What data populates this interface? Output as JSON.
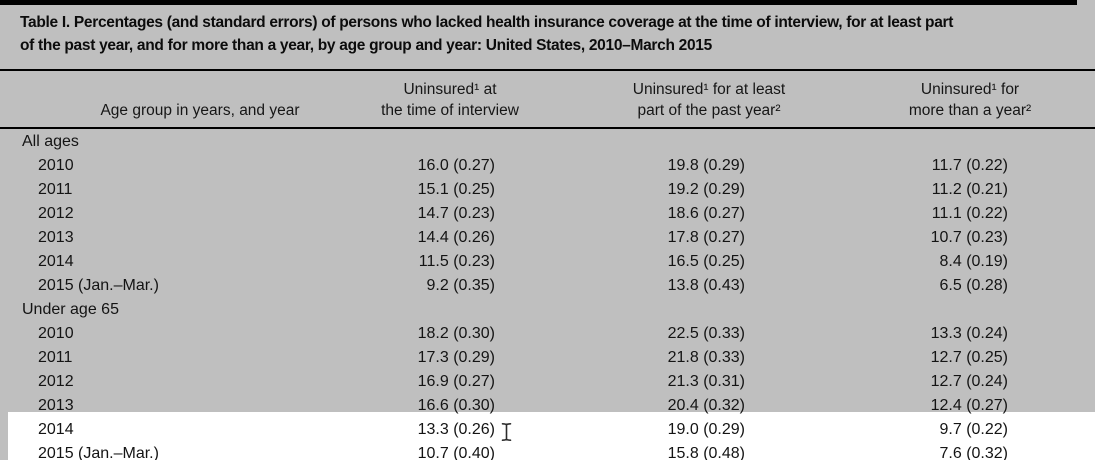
{
  "colors": {
    "page_background": "#bfbfbf",
    "highlight_background": "#ffffff",
    "rule": "#000000",
    "text": "#141414"
  },
  "header": {
    "title_line1": "Table I. Percentages (and standard errors) of persons who lacked health insurance coverage at the time of interview, for at least part",
    "title_line2": "of the past year, and for more than a year, by age group and year: United States, 2010–March 2015",
    "title_full": "Table I. Percentages (and standard errors) of persons who lacked health insurance coverage at the time of interview, for at least part of the past year, and for more than a year, by age group and year: United States, 2010–March 2015"
  },
  "table": {
    "columns": [
      {
        "label": "Age group in years, and year"
      },
      {
        "label": "Uninsured¹ at\nthe time of interview"
      },
      {
        "label": "Uninsured¹ for at least\npart of the past year²"
      },
      {
        "label": "Uninsured¹ for\nmore than a year²"
      }
    ],
    "groups": [
      {
        "label": "All ages",
        "rows": [
          {
            "label": "2010",
            "values": [
              "16.0 (0.27)",
              "19.8 (0.29)",
              "11.7 (0.22)"
            ]
          },
          {
            "label": "2011",
            "values": [
              "15.1 (0.25)",
              "19.2 (0.29)",
              "11.2 (0.21)"
            ]
          },
          {
            "label": "2012",
            "values": [
              "14.7 (0.23)",
              "18.6 (0.27)",
              "11.1 (0.22)"
            ]
          },
          {
            "label": "2013",
            "values": [
              "14.4 (0.26)",
              "17.8 (0.27)",
              "10.7 (0.23)"
            ]
          },
          {
            "label": "2014",
            "values": [
              "11.5 (0.23)",
              "16.5 (0.25)",
              "8.4 (0.19)"
            ]
          },
          {
            "label": "2015 (Jan.–Mar.)",
            "values": [
              "9.2 (0.35)",
              "13.8 (0.43)",
              "6.5 (0.28)"
            ]
          }
        ]
      },
      {
        "label": "Under age 65",
        "rows": [
          {
            "label": "2010",
            "values": [
              "18.2 (0.30)",
              "22.5 (0.33)",
              "13.3 (0.24)"
            ]
          },
          {
            "label": "2011",
            "values": [
              "17.3 (0.29)",
              "21.8 (0.33)",
              "12.7 (0.25)"
            ]
          },
          {
            "label": "2012",
            "values": [
              "16.9 (0.27)",
              "21.3 (0.31)",
              "12.7 (0.24)"
            ]
          },
          {
            "label": "2013",
            "values": [
              "16.6 (0.30)",
              "20.4 (0.32)",
              "12.4 (0.27)"
            ]
          },
          {
            "label": "2014",
            "values": [
              "13.3 (0.26)",
              "19.0 (0.29)",
              "9.7 (0.22)"
            ]
          },
          {
            "label": "2015 (Jan.–Mar.)",
            "values": [
              "10.7 (0.40)",
              "15.8 (0.48)",
              "7.6 (0.32)"
            ]
          }
        ]
      }
    ]
  },
  "cursor": {
    "type": "i-beam"
  }
}
